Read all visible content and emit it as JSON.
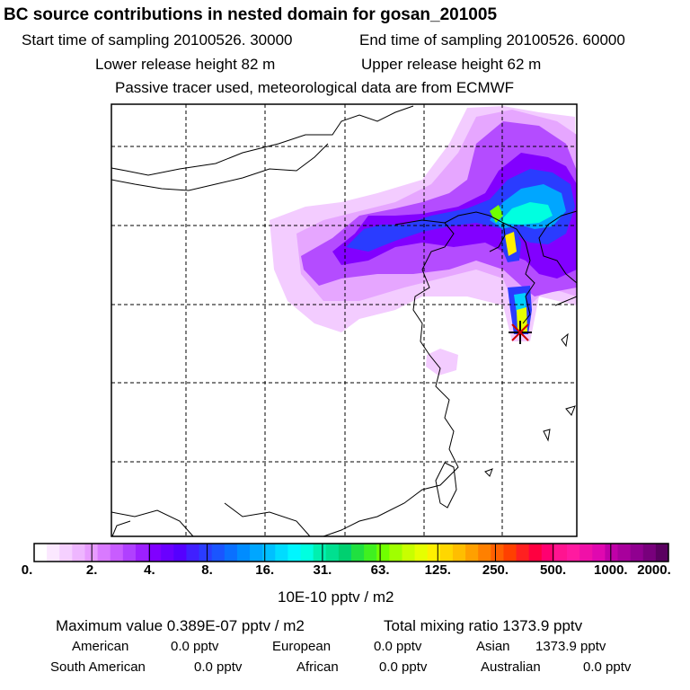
{
  "header": {
    "title": "BC  source contributions in nested domain for gosan_201005",
    "start_time": "Start time of sampling 20100526. 30000",
    "end_time": "End time of sampling 20100526. 60000",
    "lower_height": "Lower release height   82 m",
    "upper_height": "Upper release height   62 m",
    "tracer_note": "Passive tracer used, meteorological data are from ECMWF"
  },
  "colorbar": {
    "ticks": [
      "0.",
      "2.",
      "4.",
      "8.",
      "16.",
      "31.",
      "63.",
      "125.",
      "250.",
      "500.",
      "1000.",
      "2000."
    ],
    "colors": [
      "#ffffff",
      "#fbe8ff",
      "#f5d0ff",
      "#eeb6ff",
      "#e79bff",
      "#d97aff",
      "#c85cff",
      "#b040ff",
      "#9d20ff",
      "#8000ff",
      "#6a00ff",
      "#5500ff",
      "#4020ff",
      "#2a3cff",
      "#1a55ff",
      "#0a70ff",
      "#008cff",
      "#00a6ff",
      "#00c0ff",
      "#00dcff",
      "#00f6ff",
      "#00ffe0",
      "#00f0b0",
      "#00e090",
      "#00d070",
      "#20e040",
      "#40f020",
      "#70ff00",
      "#a0ff00",
      "#c8ff00",
      "#e6ff00",
      "#fff000",
      "#ffd700",
      "#ffbe00",
      "#ffa000",
      "#ff8000",
      "#ff6000",
      "#ff4000",
      "#ff2020",
      "#ff0040",
      "#ff0070",
      "#ff1490",
      "#ff1aa0",
      "#f010a8",
      "#e008b0",
      "#c000a8",
      "#a8009c",
      "#900090",
      "#78007c",
      "#5a0060"
    ],
    "units": "10E-10 pptv / m2"
  },
  "stats": {
    "max_value": "Maximum value  0.389E-07 pptv / m2",
    "total_mixing": "Total mixing ratio     1373.9 pptv",
    "american_label": "American",
    "american_value": "0.0 pptv",
    "european_label": "European",
    "european_value": "0.0 pptv",
    "asian_label": "Asian",
    "asian_value": "1373.9 pptv",
    "south_american_label": "South American",
    "south_american_value": "0.0 pptv",
    "african_label": "African",
    "african_value": "0.0 pptv",
    "australian_label": "Australian",
    "australian_value": "0.0 pptv"
  }
}
